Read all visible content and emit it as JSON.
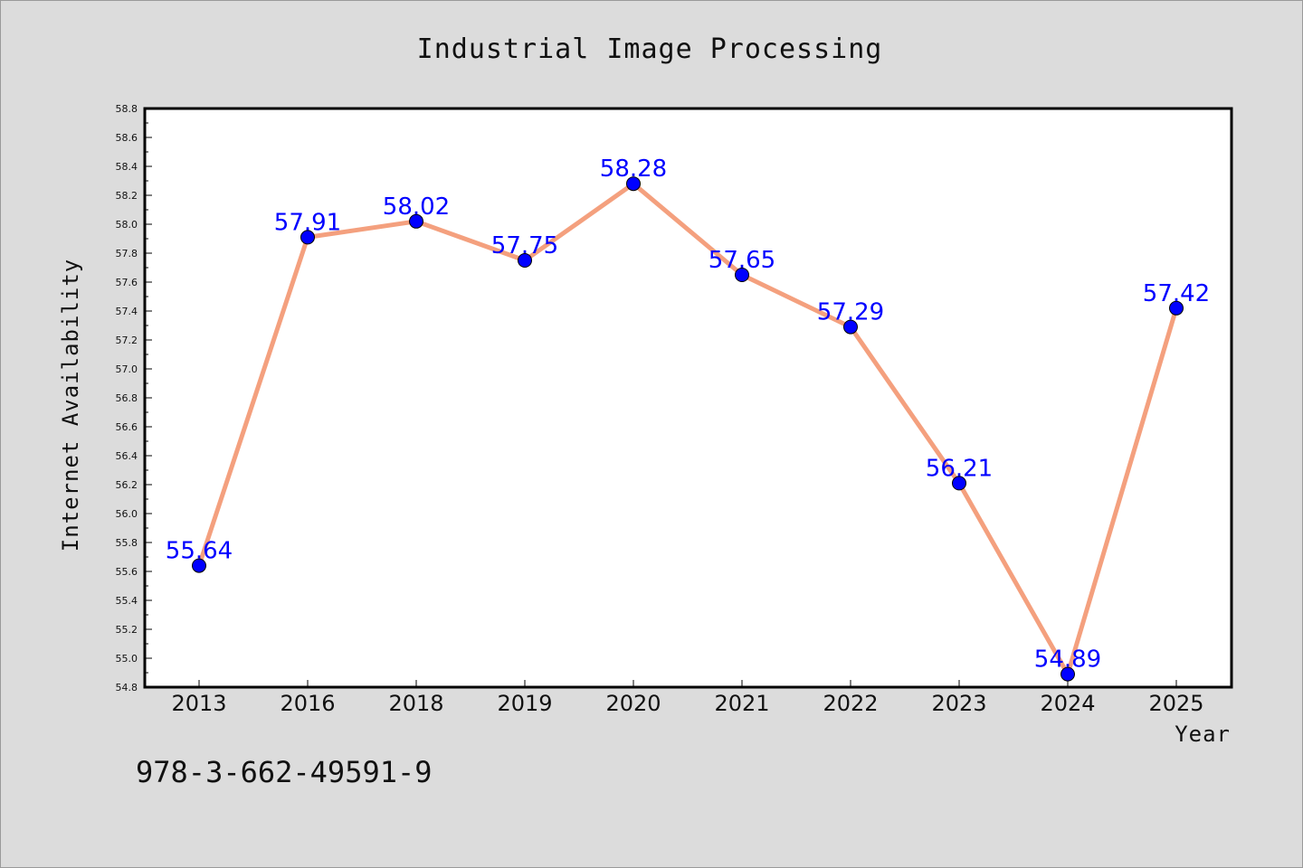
{
  "chart_data": {
    "type": "line",
    "title": "Industrial Image Processing",
    "xlabel": "Year",
    "ylabel": "Internet Availability",
    "categories": [
      "2013",
      "2016",
      "2018",
      "2019",
      "2020",
      "2021",
      "2022",
      "2023",
      "2024",
      "2025"
    ],
    "series": [
      {
        "values": [
          55.64,
          57.91,
          58.02,
          57.75,
          58.28,
          57.65,
          57.29,
          56.21,
          54.89,
          57.42
        ],
        "line_color": "#f4a07e",
        "marker_color": "#0000ff"
      }
    ],
    "data_labels": [
      "55.64",
      "57.91",
      "58.02",
      "57.75",
      "58.28",
      "57.65",
      "57.29",
      "56.21",
      "54.89",
      "57.42"
    ],
    "ylim": [
      54.8,
      58.8
    ],
    "yticks": [
      "54.8",
      "55.0",
      "55.2",
      "55.4",
      "55.6",
      "55.8",
      "56.0",
      "56.2",
      "56.4",
      "56.6",
      "56.8",
      "57.0",
      "57.2",
      "57.4",
      "57.6",
      "57.8",
      "58.0",
      "58.2",
      "58.4",
      "58.6",
      "58.8"
    ],
    "grid": false,
    "legend": "none"
  },
  "footer": {
    "isbn": "978-3-662-49591-9"
  },
  "colors": {
    "background": "#dcdcdc",
    "plot_area": "#ffffff",
    "line": "#f4a07e",
    "marker": "#0000ff",
    "data_label": "#0000ff"
  }
}
